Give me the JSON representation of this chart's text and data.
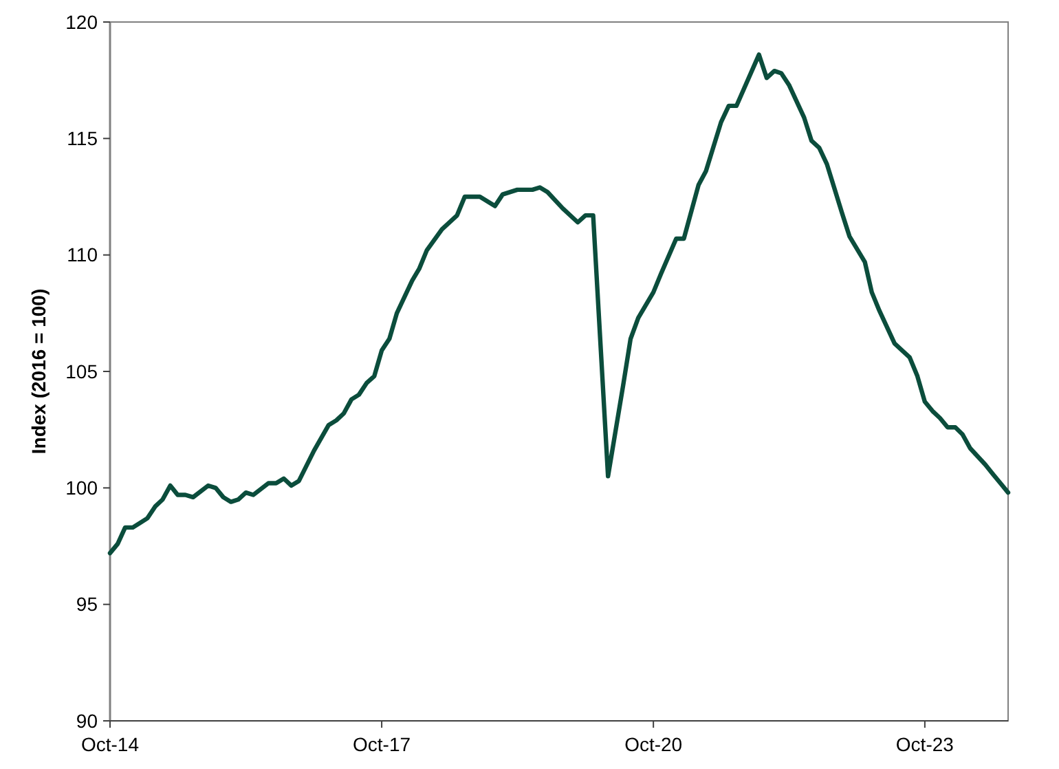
{
  "chart_data": {
    "type": "line",
    "ylabel": "Index (2016 = 100)",
    "xlim": [
      "2014-10",
      "2024-09"
    ],
    "xticks": [
      {
        "value": "2014-10",
        "label": "Oct-14"
      },
      {
        "value": "2017-10",
        "label": "Oct-17"
      },
      {
        "value": "2020-10",
        "label": "Oct-20"
      },
      {
        "value": "2023-10",
        "label": "Oct-23"
      }
    ],
    "ylim": [
      90,
      120
    ],
    "yticks": [
      90,
      95,
      100,
      105,
      110,
      115,
      120
    ],
    "grid": false,
    "marker": "none",
    "line_style": "solid",
    "series": [
      {
        "color": "#0b4d3c",
        "x": [
          "2014-10",
          "2014-11",
          "2014-12",
          "2015-01",
          "2015-03",
          "2015-04",
          "2015-05",
          "2015-06",
          "2015-07",
          "2015-08",
          "2015-09",
          "2015-11",
          "2015-12",
          "2016-01",
          "2016-02",
          "2016-03",
          "2016-04",
          "2016-05",
          "2016-07",
          "2016-08",
          "2016-09",
          "2016-10",
          "2016-11",
          "2017-01",
          "2017-03",
          "2017-04",
          "2017-05",
          "2017-06",
          "2017-07",
          "2017-08",
          "2017-09",
          "2017-10",
          "2017-11",
          "2017-12",
          "2018-02",
          "2018-03",
          "2018-04",
          "2018-06",
          "2018-08",
          "2018-09",
          "2018-11",
          "2019-01",
          "2019-02",
          "2019-04",
          "2019-06",
          "2019-07",
          "2019-08",
          "2019-10",
          "2019-12",
          "2020-01",
          "2020-02",
          "2020-04",
          "2020-06",
          "2020-07",
          "2020-08",
          "2020-10",
          "2020-11",
          "2021-01",
          "2021-02",
          "2021-04",
          "2021-05",
          "2021-07",
          "2021-08",
          "2021-09",
          "2021-12",
          "2022-01",
          "2022-02",
          "2022-03",
          "2022-04",
          "2022-06",
          "2022-07",
          "2022-08",
          "2022-09",
          "2022-11",
          "2022-12",
          "2023-02",
          "2023-03",
          "2023-04",
          "2023-06",
          "2023-08",
          "2023-09",
          "2023-10",
          "2023-11",
          "2023-12",
          "2024-01",
          "2024-02",
          "2024-03",
          "2024-04",
          "2024-06",
          "2024-07",
          "2024-08",
          "2024-09"
        ],
        "values": [
          97.2,
          97.6,
          98.3,
          98.3,
          98.7,
          99.2,
          99.5,
          100.1,
          99.7,
          99.7,
          99.6,
          100.1,
          100.0,
          99.6,
          99.4,
          99.5,
          99.8,
          99.7,
          100.2,
          100.2,
          100.4,
          100.1,
          100.3,
          101.6,
          102.7,
          102.9,
          103.2,
          103.8,
          104.0,
          104.5,
          104.8,
          105.9,
          106.4,
          107.5,
          108.9,
          109.4,
          110.2,
          111.1,
          111.7,
          112.5,
          112.5,
          112.1,
          112.6,
          112.8,
          112.8,
          112.9,
          112.7,
          112.0,
          111.4,
          111.7,
          111.7,
          100.5,
          104.4,
          106.4,
          107.3,
          108.4,
          109.2,
          110.7,
          110.7,
          113.0,
          113.6,
          115.7,
          116.4,
          116.4,
          118.6,
          117.6,
          117.9,
          117.8,
          117.3,
          115.9,
          114.9,
          114.6,
          113.9,
          111.8,
          110.8,
          109.7,
          108.4,
          107.6,
          106.2,
          105.6,
          104.8,
          103.7,
          103.3,
          103.0,
          102.6,
          102.6,
          102.3,
          101.7,
          101.0,
          100.6,
          100.2,
          99.8
        ]
      }
    ]
  }
}
